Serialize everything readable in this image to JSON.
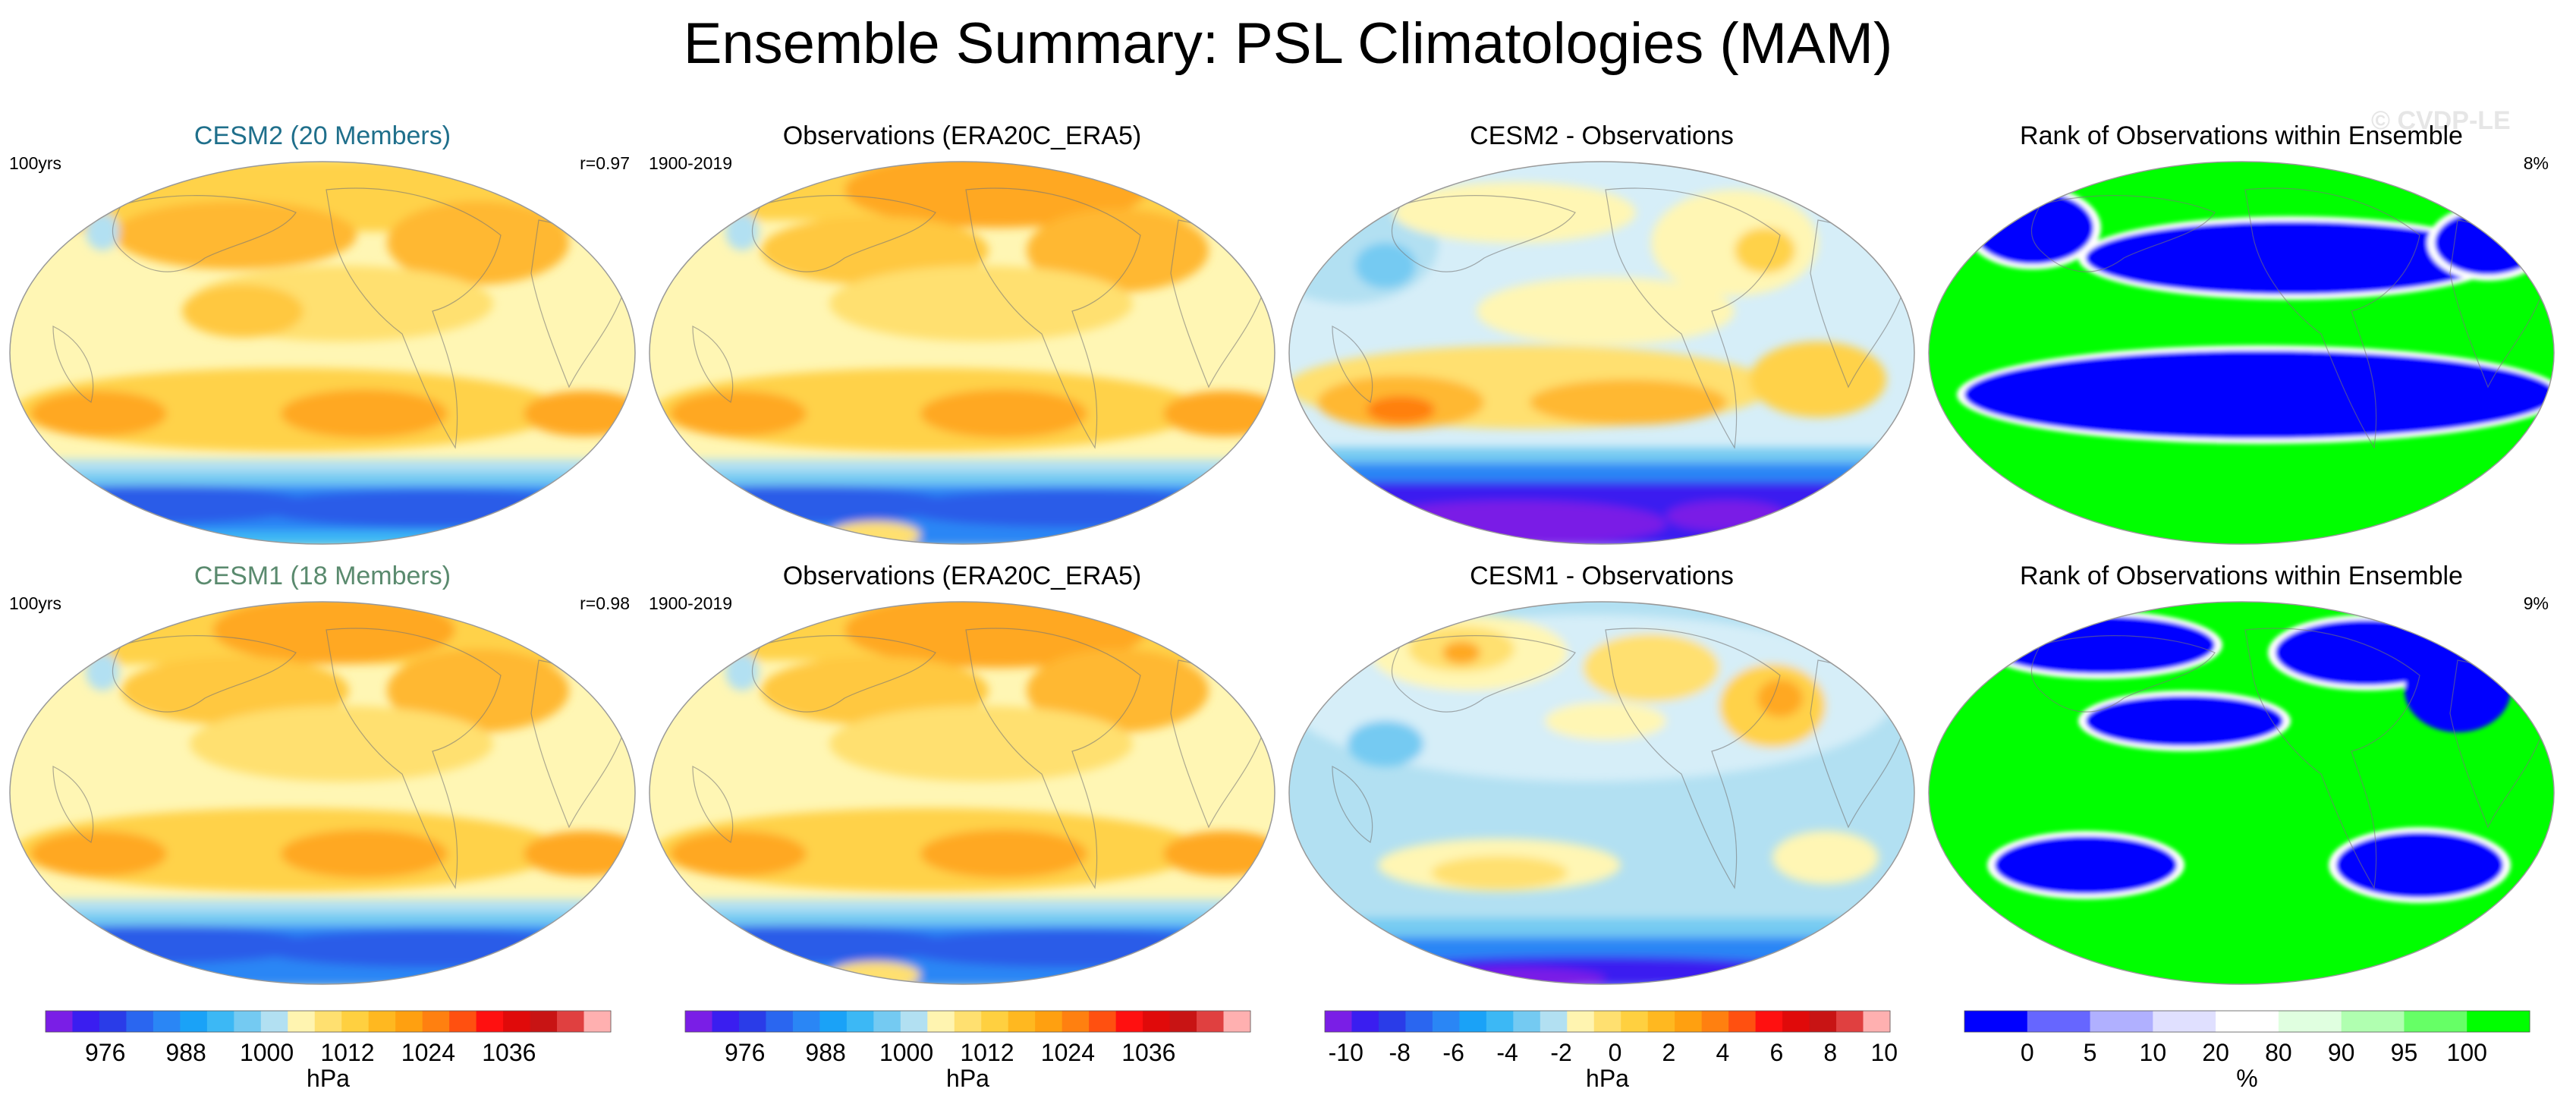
{
  "title": "Ensemble Summary: PSL Climatologies (MAM)",
  "watermark": "© CVDP-LE",
  "panels": [
    {
      "title": "CESM2 (20 Members)",
      "title_color": "#1f6f8b",
      "left": "100yrs",
      "right": "r=0.97",
      "kind": "psl"
    },
    {
      "title": "Observations (ERA20C_ERA5)",
      "title_color": "#000000",
      "left": "1900-2019",
      "right": "",
      "kind": "psl"
    },
    {
      "title": "CESM2 - Observations",
      "title_color": "#000000",
      "left": "",
      "right": "",
      "kind": "diff"
    },
    {
      "title": "Rank of Observations within Ensemble",
      "title_color": "#000000",
      "left": "",
      "right": "8%",
      "kind": "rank"
    },
    {
      "title": "CESM1 (18 Members)",
      "title_color": "#5a8a6e",
      "left": "100yrs",
      "right": "r=0.98",
      "kind": "psl"
    },
    {
      "title": "Observations (ERA20C_ERA5)",
      "title_color": "#000000",
      "left": "1900-2019",
      "right": "",
      "kind": "psl"
    },
    {
      "title": "CESM1 - Observations",
      "title_color": "#000000",
      "left": "",
      "right": "",
      "kind": "diff2"
    },
    {
      "title": "Rank of Observations within Ensemble",
      "title_color": "#000000",
      "left": "",
      "right": "9%",
      "kind": "rank2"
    }
  ],
  "colorbars": [
    {
      "unit": "hPa",
      "ticks": [
        "976",
        "988",
        "1000",
        "1012",
        "1024",
        "1036"
      ],
      "colors": [
        "#7a1ee6",
        "#3a1ef0",
        "#2a3ce8",
        "#2a66f0",
        "#2a86f5",
        "#1aa2f7",
        "#3cb8f5",
        "#74caf2",
        "#b2e0f2",
        "#fff4b0",
        "#ffe070",
        "#ffd040",
        "#ffb820",
        "#ffa010",
        "#ff8010",
        "#ff5010",
        "#ff1010",
        "#e00a0a",
        "#c81414",
        "#e04040",
        "#ffb0b0"
      ]
    },
    {
      "unit": "hPa",
      "ticks": [
        "976",
        "988",
        "1000",
        "1012",
        "1024",
        "1036"
      ],
      "colors": [
        "#7a1ee6",
        "#3a1ef0",
        "#2a3ce8",
        "#2a66f0",
        "#2a86f5",
        "#1aa2f7",
        "#3cb8f5",
        "#74caf2",
        "#b2e0f2",
        "#fff4b0",
        "#ffe070",
        "#ffd040",
        "#ffb820",
        "#ffa010",
        "#ff8010",
        "#ff5010",
        "#ff1010",
        "#e00a0a",
        "#c81414",
        "#e04040",
        "#ffb0b0"
      ]
    },
    {
      "unit": "hPa",
      "ticks": [
        "-10",
        "-8",
        "-6",
        "-4",
        "-2",
        "0",
        "2",
        "4",
        "6",
        "8",
        "10"
      ],
      "colors": [
        "#7a1ee6",
        "#3a1ef0",
        "#2a3ce8",
        "#2a66f0",
        "#2a86f5",
        "#1aa2f7",
        "#3cb8f5",
        "#74caf2",
        "#b2e0f2",
        "#fff4b0",
        "#ffe070",
        "#ffd040",
        "#ffb820",
        "#ffa010",
        "#ff8010",
        "#ff5010",
        "#ff1010",
        "#e00a0a",
        "#c81414",
        "#e04040",
        "#ffb0b0"
      ]
    },
    {
      "unit": "%",
      "ticks": [
        "0",
        "5",
        "10",
        "20",
        "80",
        "90",
        "95",
        "100"
      ],
      "colors": [
        "#0000ff",
        "#6666ff",
        "#b0b0ff",
        "#e0e0ff",
        "#ffffff",
        "#e0ffe0",
        "#b0ffb0",
        "#66ff66",
        "#00ff00"
      ]
    }
  ],
  "chart_data": [
    {
      "type": "heatmap",
      "title": "CESM2 (20 Members)",
      "units": "hPa",
      "range": [
        970,
        1044
      ],
      "label_left": "100yrs",
      "pattern_correlation": 0.97
    },
    {
      "type": "heatmap",
      "title": "Observations (ERA20C_ERA5)",
      "units": "hPa",
      "range": [
        970,
        1044
      ],
      "label_left": "1900-2019"
    },
    {
      "type": "heatmap",
      "title": "CESM2 - Observations",
      "units": "hPa",
      "range": [
        -11,
        11
      ]
    },
    {
      "type": "heatmap",
      "title": "Rank of Observations within Ensemble",
      "units": "%",
      "range": [
        0,
        100
      ],
      "label_right": "8%"
    },
    {
      "type": "heatmap",
      "title": "CESM1 (18 Members)",
      "units": "hPa",
      "range": [
        970,
        1044
      ],
      "label_left": "100yrs",
      "pattern_correlation": 0.98
    },
    {
      "type": "heatmap",
      "title": "Observations (ERA20C_ERA5)",
      "units": "hPa",
      "range": [
        970,
        1044
      ],
      "label_left": "1900-2019"
    },
    {
      "type": "heatmap",
      "title": "CESM1 - Observations",
      "units": "hPa",
      "range": [
        -11,
        11
      ]
    },
    {
      "type": "heatmap",
      "title": "Rank of Observations within Ensemble",
      "units": "%",
      "range": [
        0,
        100
      ],
      "label_right": "9%"
    }
  ]
}
